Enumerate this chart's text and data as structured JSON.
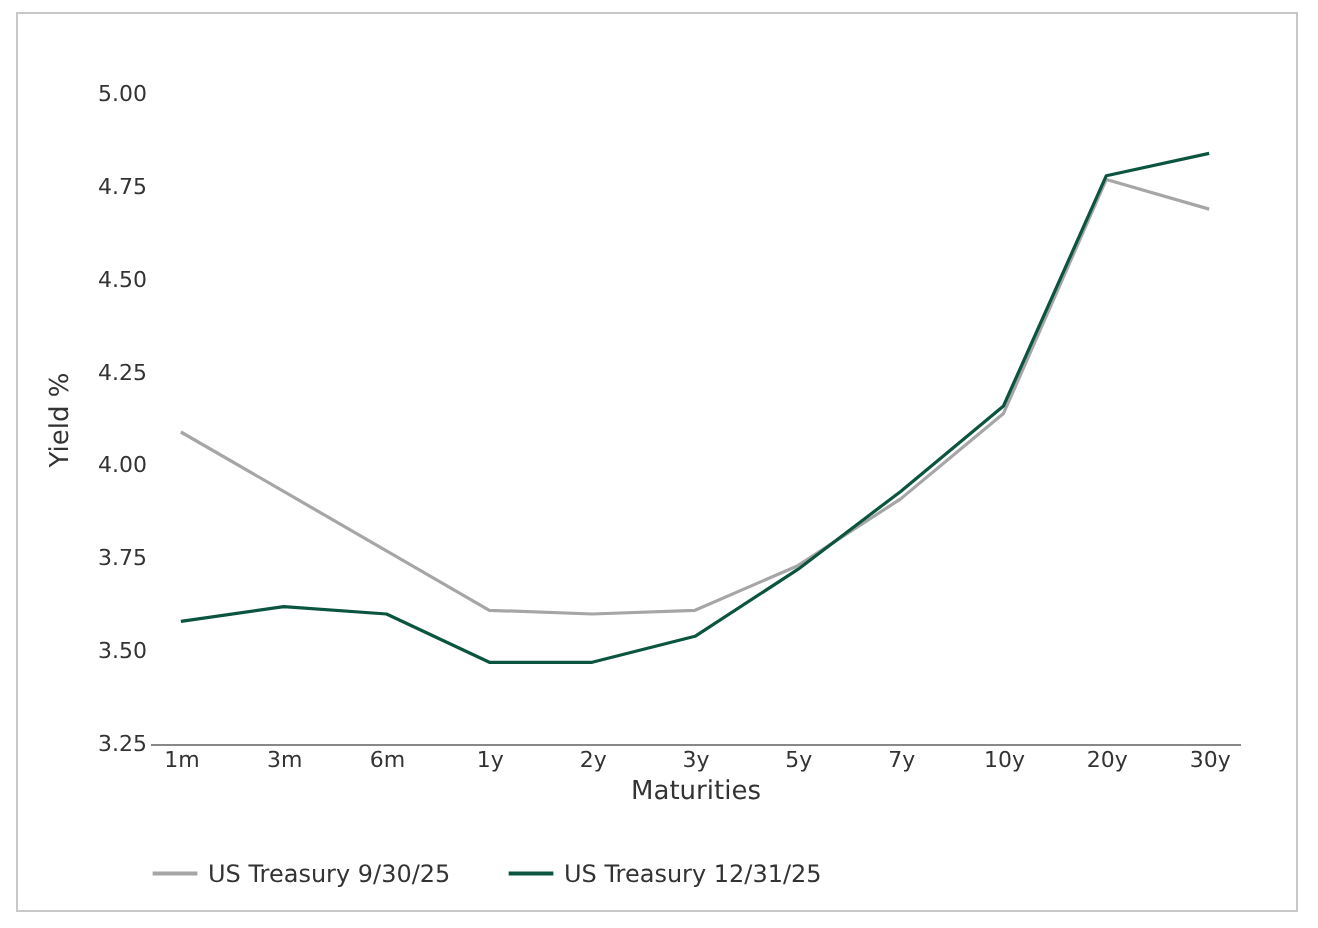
{
  "chart_data": {
    "type": "line",
    "xlabel": "Maturities",
    "ylabel": "Yield %",
    "categories": [
      "1m",
      "3m",
      "6m",
      "1y",
      "2y",
      "3y",
      "5y",
      "7y",
      "10y",
      "20y",
      "30y"
    ],
    "series": [
      {
        "name": "US Treasury 9/30/25",
        "color": "#a6a6a6",
        "values": [
          4.09,
          3.93,
          3.77,
          3.61,
          3.6,
          3.61,
          3.73,
          3.91,
          4.14,
          4.77,
          4.69
        ]
      },
      {
        "name": "US Treasury 12/31/25",
        "color": "#0b5440",
        "values": [
          3.58,
          3.62,
          3.6,
          3.47,
          3.47,
          3.54,
          3.72,
          3.93,
          4.16,
          4.78,
          4.84
        ]
      }
    ],
    "ylim": [
      3.25,
      5.0
    ],
    "yticks": [
      {
        "value": 3.25,
        "label": "3.25"
      },
      {
        "value": 3.5,
        "label": "3.50"
      },
      {
        "value": 3.75,
        "label": "3.75"
      },
      {
        "value": 4.0,
        "label": "4.00"
      },
      {
        "value": 4.25,
        "label": "4.25"
      },
      {
        "value": 4.5,
        "label": "4.50"
      },
      {
        "value": 4.75,
        "label": "4.75"
      },
      {
        "value": 5.0,
        "label": "5.00"
      }
    ],
    "legend": "bottom",
    "line_style": "solid"
  }
}
